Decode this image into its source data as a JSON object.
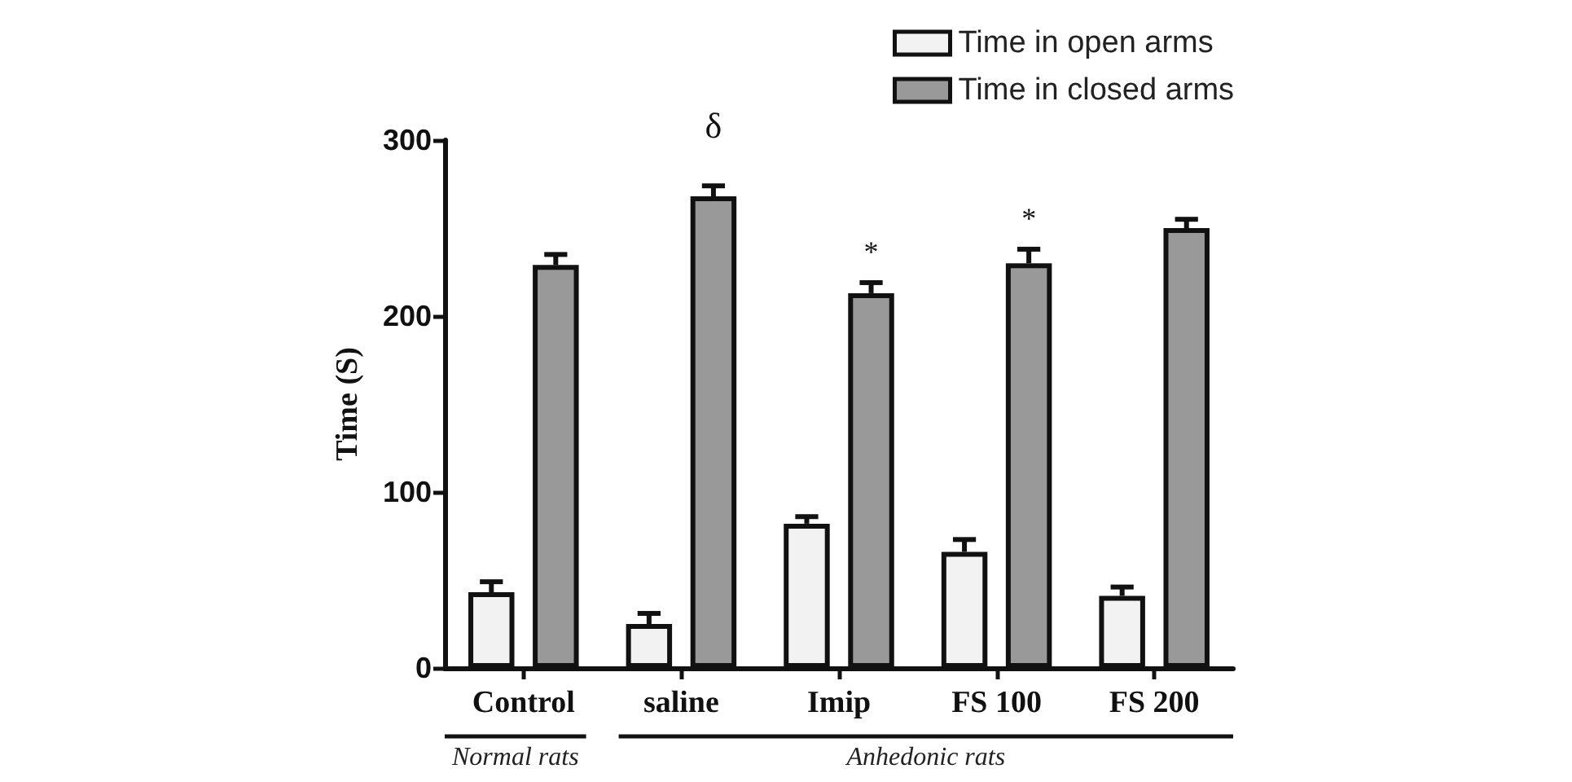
{
  "chart_data": {
    "type": "bar",
    "ylabel": "Time (S)",
    "categories": [
      "Control",
      "saline",
      "Imip",
      "FS 100",
      "FS 200"
    ],
    "series": [
      {
        "name": "Time in open arms",
        "color": "#f2f2f2",
        "values": [
          43,
          25,
          82,
          66,
          41
        ],
        "errors": [
          6,
          6,
          4,
          7,
          5
        ]
      },
      {
        "name": "Time in closed arms",
        "color": "#999999",
        "values": [
          229,
          268,
          213,
          230,
          250
        ],
        "errors": [
          6,
          6,
          6,
          8,
          5
        ]
      }
    ],
    "ylim": [
      0,
      300
    ],
    "yticks": [
      0,
      100,
      200,
      300
    ],
    "legend": "top right",
    "annotations": [
      "δ",
      "*",
      "*",
      "Normal rats",
      "Anhedonic rats"
    ]
  }
}
